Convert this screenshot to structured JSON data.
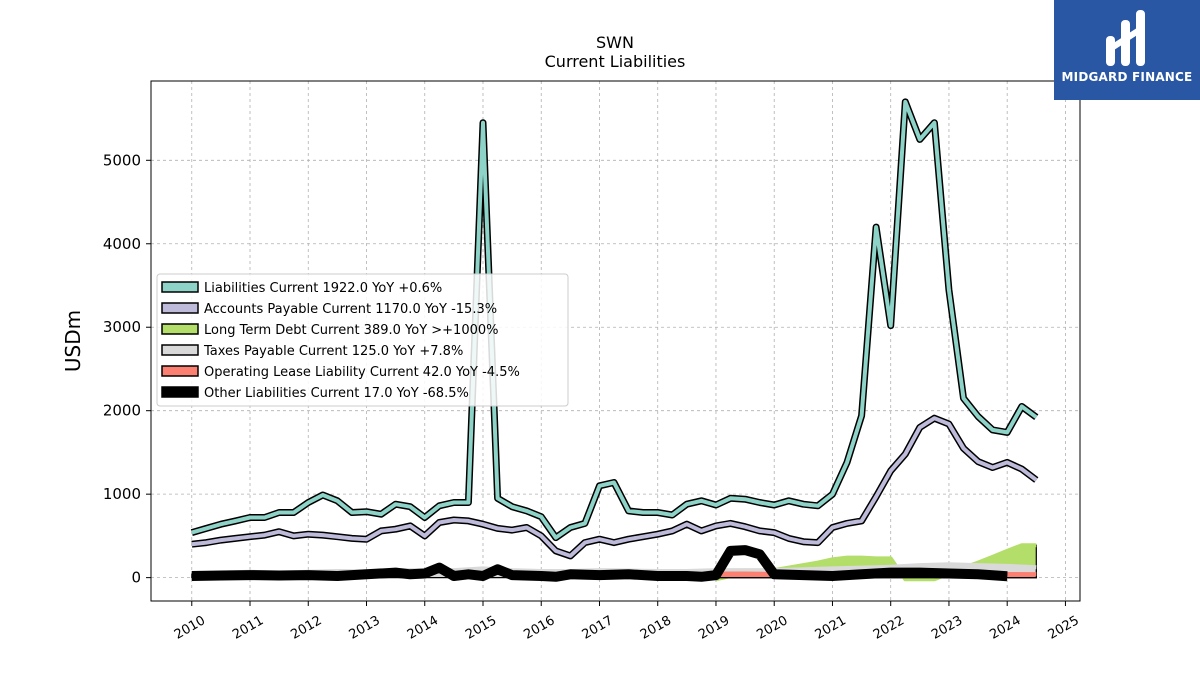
{
  "brand": {
    "name": "MIDGARD FINANCE"
  },
  "chart_data": {
    "type": "line",
    "title": "SWN",
    "subtitle": "Current  Liabilities",
    "ylabel": "USDm",
    "xlim": [
      2009.3,
      2025.25
    ],
    "ylim": [
      -280,
      5950
    ],
    "yticks": [
      0,
      1000,
      2000,
      3000,
      4000,
      5000
    ],
    "xticks": [
      2010,
      2011,
      2012,
      2013,
      2014,
      2015,
      2016,
      2017,
      2018,
      2019,
      2020,
      2021,
      2022,
      2023,
      2024,
      2025
    ],
    "grid": true,
    "legend_position": "center-left",
    "series": [
      {
        "name": "Liabilities Current  1922.0 YoY +0.6%",
        "color": "#8dd3c7",
        "fill": false,
        "x": [
          2010.0,
          2010.25,
          2010.5,
          2010.75,
          2011.0,
          2011.25,
          2011.5,
          2011.75,
          2012.0,
          2012.25,
          2012.5,
          2012.75,
          2013.0,
          2013.25,
          2013.5,
          2013.75,
          2014.0,
          2014.25,
          2014.5,
          2014.75,
          2015.0,
          2015.25,
          2015.5,
          2015.75,
          2016.0,
          2016.25,
          2016.5,
          2016.75,
          2017.0,
          2017.25,
          2017.5,
          2017.75,
          2018.0,
          2018.25,
          2018.5,
          2018.75,
          2019.0,
          2019.25,
          2019.5,
          2019.75,
          2020.0,
          2020.25,
          2020.5,
          2020.75,
          2021.0,
          2021.25,
          2021.5,
          2021.75,
          2022.0,
          2022.25,
          2022.5,
          2022.75,
          2023.0,
          2023.25,
          2023.5,
          2023.75,
          2024.0,
          2024.25,
          2024.5
        ],
        "y": [
          540,
          590,
          640,
          680,
          720,
          720,
          780,
          780,
          900,
          990,
          920,
          780,
          790,
          760,
          880,
          850,
          720,
          860,
          900,
          900,
          5450,
          950,
          850,
          800,
          730,
          480,
          600,
          650,
          1100,
          1140,
          800,
          780,
          780,
          750,
          880,
          920,
          870,
          950,
          940,
          900,
          870,
          920,
          880,
          860,
          1000,
          1380,
          1940,
          4200,
          3020,
          5700,
          5250,
          5450,
          3450,
          2150,
          1930,
          1770,
          1740,
          2050,
          1922
        ]
      },
      {
        "name": "Accounts Payable Current  1170.0 YoY -15.3%",
        "color": "#bebada",
        "fill": false,
        "x": [
          2010.0,
          2010.25,
          2010.5,
          2010.75,
          2011.0,
          2011.25,
          2011.5,
          2011.75,
          2012.0,
          2012.25,
          2012.5,
          2012.75,
          2013.0,
          2013.25,
          2013.5,
          2013.75,
          2014.0,
          2014.25,
          2014.5,
          2014.75,
          2015.0,
          2015.25,
          2015.5,
          2015.75,
          2016.0,
          2016.25,
          2016.5,
          2016.75,
          2017.0,
          2017.25,
          2017.5,
          2017.75,
          2018.0,
          2018.25,
          2018.5,
          2018.75,
          2019.0,
          2019.25,
          2019.5,
          2019.75,
          2020.0,
          2020.25,
          2020.5,
          2020.75,
          2021.0,
          2021.25,
          2021.5,
          2021.75,
          2022.0,
          2022.25,
          2022.5,
          2022.75,
          2023.0,
          2023.25,
          2023.5,
          2023.75,
          2024.0,
          2024.25,
          2024.5
        ],
        "y": [
          400,
          420,
          450,
          470,
          490,
          510,
          550,
          500,
          520,
          510,
          490,
          470,
          460,
          560,
          580,
          620,
          500,
          660,
          690,
          680,
          640,
          590,
          570,
          600,
          500,
          320,
          260,
          420,
          460,
          420,
          460,
          490,
          520,
          560,
          640,
          560,
          620,
          650,
          610,
          560,
          540,
          470,
          430,
          420,
          600,
          650,
          680,
          970,
          1280,
          1480,
          1800,
          1910,
          1840,
          1550,
          1390,
          1320,
          1380,
          1300,
          1170
        ]
      },
      {
        "name": "Long Term Debt Current  389.0 YoY >+1000%",
        "color": "#b3de69",
        "fill": true,
        "x": [
          2019.0,
          2019.25,
          2019.5,
          2019.75,
          2020.0,
          2020.25,
          2020.5,
          2020.75,
          2021.0,
          2021.25,
          2021.5,
          2021.75,
          2022.0,
          2022.25,
          2022.5,
          2022.75,
          2023.0,
          2023.25,
          2023.5,
          2023.75,
          2024.0,
          2024.25,
          2024.5
        ],
        "y": [
          -20,
          20,
          40,
          60,
          90,
          120,
          150,
          180,
          220,
          240,
          240,
          230,
          230,
          -20,
          -20,
          -20,
          50,
          120,
          180,
          250,
          320,
          389,
          389
        ]
      },
      {
        "name": "Taxes Payable Current  125.0 YoY +7.8%",
        "color": "#d9d9d9",
        "fill": true,
        "x": [
          2010.0,
          2010.5,
          2011.0,
          2011.5,
          2012.0,
          2012.5,
          2013.0,
          2013.5,
          2014.0,
          2014.5,
          2015.0,
          2015.5,
          2016.0,
          2016.5,
          2017.0,
          2017.5,
          2018.0,
          2018.5,
          2019.0,
          2019.5,
          2020.0,
          2020.5,
          2021.0,
          2021.5,
          2022.0,
          2022.5,
          2023.0,
          2023.5,
          2024.0,
          2024.5
        ],
        "y": [
          40,
          60,
          70,
          60,
          70,
          80,
          75,
          90,
          90,
          90,
          110,
          90,
          80,
          80,
          90,
          85,
          80,
          80,
          90,
          90,
          90,
          100,
          110,
          120,
          130,
          150,
          160,
          150,
          140,
          125
        ]
      },
      {
        "name": "Operating Lease Liability Current  42.0 YoY -4.5%",
        "color": "#fb8072",
        "fill": true,
        "x": [
          2019.0,
          2019.5,
          2020.0,
          2020.5,
          2021.0,
          2021.5,
          2022.0,
          2022.5,
          2023.0,
          2023.5,
          2024.0,
          2024.5
        ],
        "y": [
          50,
          50,
          45,
          45,
          45,
          45,
          45,
          45,
          44,
          44,
          44,
          42
        ]
      },
      {
        "name": "Other Liabilities Current  17.0 YoY -68.5%",
        "color": "#000000",
        "fill": false,
        "x": [
          2010.0,
          2010.5,
          2011.0,
          2011.5,
          2012.0,
          2012.5,
          2013.0,
          2013.5,
          2013.75,
          2014.0,
          2014.25,
          2014.5,
          2014.75,
          2015.0,
          2015.25,
          2015.5,
          2016.0,
          2016.25,
          2016.5,
          2017.0,
          2017.5,
          2018.0,
          2018.5,
          2018.75,
          2019.0,
          2019.25,
          2019.5,
          2019.75,
          2020.0,
          2020.5,
          2021.0,
          2021.5,
          2022.0,
          2022.5,
          2023.0,
          2023.5,
          2024.0
        ],
        "y": [
          20,
          25,
          30,
          25,
          30,
          20,
          40,
          60,
          40,
          50,
          120,
          20,
          40,
          20,
          100,
          30,
          20,
          10,
          40,
          30,
          40,
          20,
          20,
          10,
          30,
          320,
          330,
          280,
          40,
          30,
          20,
          40,
          60,
          60,
          50,
          40,
          17
        ]
      }
    ]
  }
}
